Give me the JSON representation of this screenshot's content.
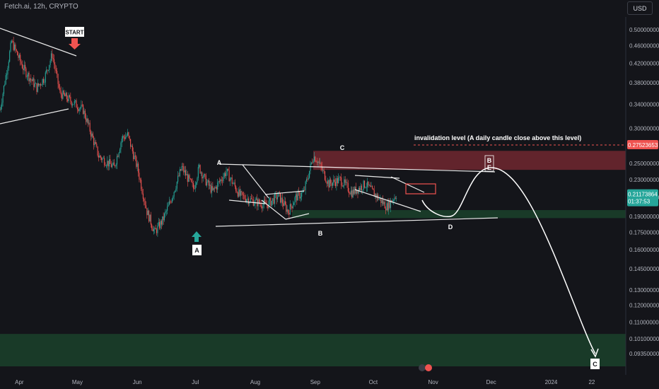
{
  "header": {
    "symbol_line": "Fetch.ai, 12h, CRYPTO",
    "currency": "USD"
  },
  "colors": {
    "background": "#14151a",
    "candle_up": "#26a69a",
    "candle_down": "#ef5350",
    "resistance_zone": "#a3313c",
    "support_zone": "#1e5a34",
    "drawing": "#ffffff",
    "invalidation": "#ef5350",
    "price_tag": "#26a69a"
  },
  "chart_data": {
    "type": "candlestick",
    "y_scale": "log",
    "ylim": [
      0.0875,
      0.53
    ],
    "y_ticks": [
      "0.50000000",
      "0.46000000",
      "0.42000000",
      "0.38000000",
      "0.34000000",
      "0.30000000",
      "0.25000000",
      "0.23000000",
      "0.21000000",
      "0.19000000",
      "0.17500000",
      "0.16000000",
      "0.14500000",
      "0.13000000",
      "0.12000000",
      "0.11000000",
      "0.10100000",
      "0.09350000"
    ],
    "x_ticks": [
      "Apr",
      "May",
      "Jun",
      "Jul",
      "Aug",
      "Sep",
      "Oct",
      "Nov",
      "Dec",
      "2024",
      "22"
    ],
    "price_path": [
      [
        "2023-03-22",
        0.33
      ],
      [
        "2023-03-28",
        0.47
      ],
      [
        "2023-04-03",
        0.41
      ],
      [
        "2023-04-10",
        0.37
      ],
      [
        "2023-04-14",
        0.39
      ],
      [
        "2023-04-18",
        0.44
      ],
      [
        "2023-04-22",
        0.36
      ],
      [
        "2023-04-28",
        0.345
      ],
      [
        "2023-05-04",
        0.33
      ],
      [
        "2023-05-12",
        0.26
      ],
      [
        "2023-05-20",
        0.245
      ],
      [
        "2023-05-24",
        0.285
      ],
      [
        "2023-05-27",
        0.29
      ],
      [
        "2023-06-01",
        0.245
      ],
      [
        "2023-06-06",
        0.195
      ],
      [
        "2023-06-10",
        0.175
      ],
      [
        "2023-06-14",
        0.186
      ],
      [
        "2023-06-18",
        0.205
      ],
      [
        "2023-06-24",
        0.245
      ],
      [
        "2023-06-30",
        0.22
      ],
      [
        "2023-07-03",
        0.245
      ],
      [
        "2023-07-06",
        0.23
      ],
      [
        "2023-07-10",
        0.216
      ],
      [
        "2023-07-17",
        0.24
      ],
      [
        "2023-07-24",
        0.212
      ],
      [
        "2023-08-01",
        0.205
      ],
      [
        "2023-08-07",
        0.202
      ],
      [
        "2023-08-13",
        0.212
      ],
      [
        "2023-08-18",
        0.195
      ],
      [
        "2023-08-22",
        0.21
      ],
      [
        "2023-08-26",
        0.215
      ],
      [
        "2023-08-31",
        0.26
      ],
      [
        "2023-09-02",
        0.255
      ],
      [
        "2023-09-08",
        0.225
      ],
      [
        "2023-09-14",
        0.23
      ],
      [
        "2023-09-20",
        0.215
      ],
      [
        "2023-09-27",
        0.225
      ],
      [
        "2023-10-01",
        0.215
      ],
      [
        "2023-10-08",
        0.2
      ],
      [
        "2023-10-13",
        0.213
      ]
    ],
    "current_price": 0.21173864,
    "current_price_label": "0.21173864",
    "countdown": "01:37:53",
    "invalidation_level": 0.27523653,
    "invalidation_label": "0.27523653",
    "invalidation_text": "invalidation level (A daily candle close above this level)",
    "zones": [
      {
        "kind": "resistance",
        "low": 0.242,
        "high": 0.267,
        "from": "2023-08-31"
      },
      {
        "kind": "support",
        "low": 0.1885,
        "high": 0.1965,
        "from": "2023-08-20"
      },
      {
        "kind": "support",
        "low": 0.0875,
        "high": 0.1035,
        "from": "2023-03-22"
      }
    ],
    "wave_labels": [
      "START",
      "A",
      "A",
      "B",
      "C",
      "D",
      "B",
      "E",
      "C"
    ],
    "grid": false
  }
}
